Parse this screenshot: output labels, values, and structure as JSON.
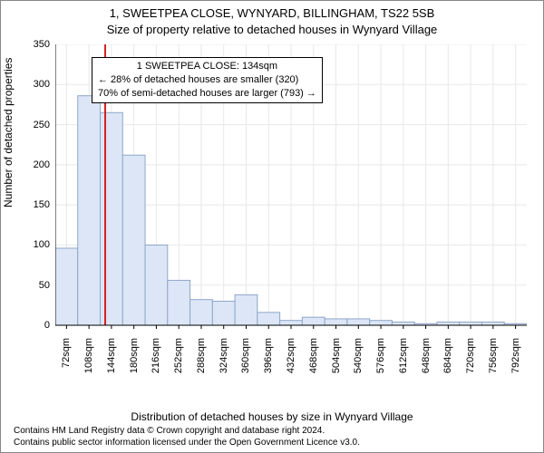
{
  "titles": {
    "line1": "1, SWEETPEA CLOSE, WYNYARD, BILLINGHAM, TS22 5SB",
    "line2": "Size of property relative to detached houses in Wynyard Village"
  },
  "ylabel": "Number of detached properties",
  "xlabel": "Distribution of detached houses by size in Wynyard Village",
  "attribution": {
    "line1": "Contains HM Land Registry data © Crown copyright and database right 2024.",
    "line2": "Contains public sector information licensed under the Open Government Licence v3.0."
  },
  "infobox": {
    "line1": "1 SWEETPEA CLOSE: 134sqm",
    "line2": "← 28% of detached houses are smaller (320)",
    "line3": "70% of semi-detached houses are larger (793) →"
  },
  "chart": {
    "type": "histogram",
    "bg_color": "#ffffff",
    "grid_color": "#e8e8e8",
    "bar_fill": "#dce6f6",
    "bar_stroke": "#8fa6c9",
    "marker_color": "#d62020",
    "marker_x": 134,
    "marker_x_label": "134sqm",
    "x_min": 54,
    "x_max": 810,
    "x_bin_width": 36,
    "y_min": 0,
    "y_max": 350,
    "y_tick_step": 50,
    "x_ticks": [
      72,
      108,
      144,
      180,
      216,
      252,
      288,
      324,
      360,
      396,
      432,
      468,
      504,
      540,
      576,
      612,
      648,
      684,
      720,
      756,
      792
    ],
    "x_tick_suffix": "sqm",
    "values": [
      96,
      286,
      265,
      212,
      100,
      56,
      32,
      30,
      38,
      16,
      6,
      10,
      8,
      8,
      6,
      4,
      2,
      4,
      4,
      4,
      2
    ],
    "title_fontsize": 13,
    "label_fontsize": 12,
    "tick_fontsize": 11
  }
}
